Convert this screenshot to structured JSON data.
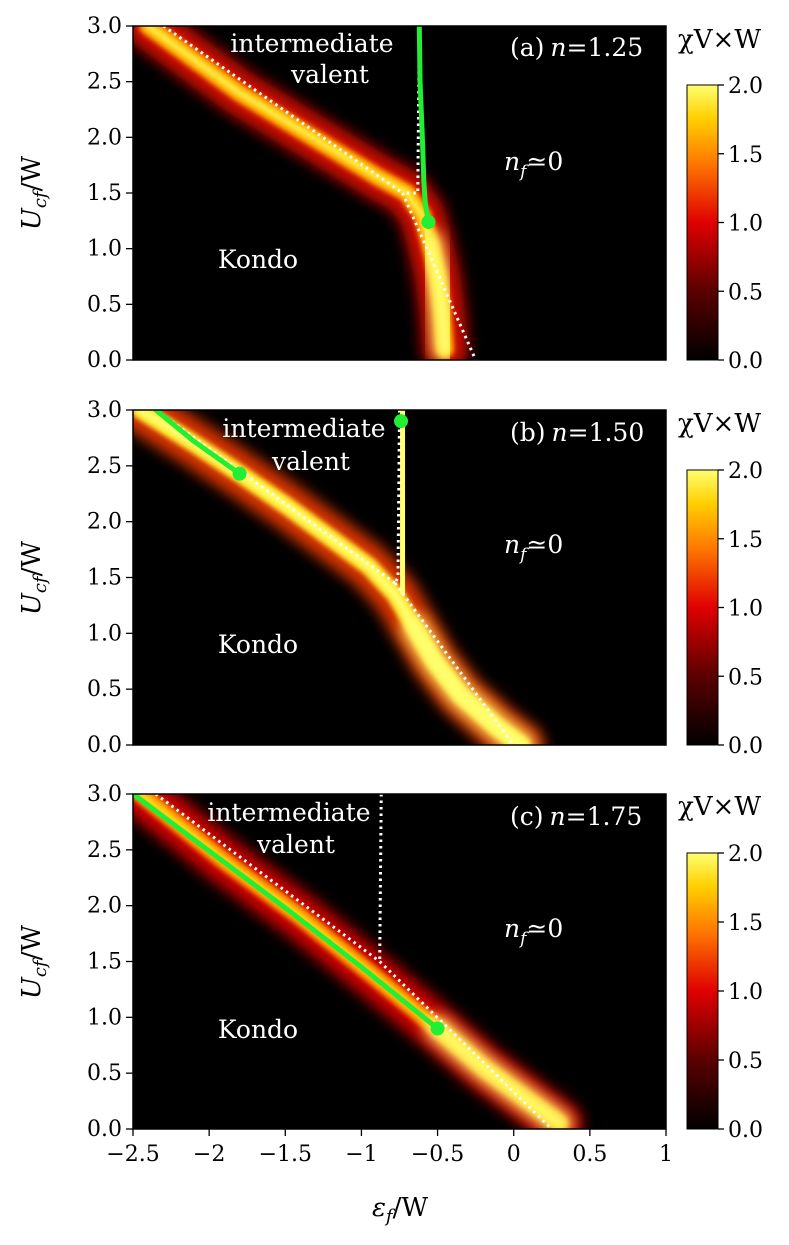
{
  "chart_data": [
    {
      "type": "heatmap",
      "panel_label": "(a)",
      "n_label": "n",
      "n_value": "=1.25",
      "xlim": [
        -2.5,
        1.0
      ],
      "ylim": [
        0.0,
        3.0
      ],
      "colorbar_label": "χV×W",
      "colorbar_range": [
        0.0,
        2.0
      ],
      "regions": {
        "kondo": "Kondo",
        "iv_line1": "intermediate",
        "iv_line2": "valent",
        "nf_var": "n",
        "nf_sub": "f",
        "nf_rest": "≃0"
      },
      "ridge_points": [
        [
          -2.4,
          3.0
        ],
        [
          -2.1,
          2.7
        ],
        [
          -1.8,
          2.4
        ],
        [
          -1.5,
          2.15
        ],
        [
          -1.2,
          1.9
        ],
        [
          -0.9,
          1.65
        ],
        [
          -0.7,
          1.5
        ],
        [
          -0.6,
          1.3
        ],
        [
          -0.55,
          1.05
        ],
        [
          -0.5,
          0.75
        ],
        [
          -0.47,
          0.45
        ],
        [
          -0.45,
          0.1
        ]
      ],
      "ridge_peak": 1.9,
      "vertical_ridge": null,
      "boundary_lines": [
        {
          "x": [
            -2.3,
            -0.73
          ],
          "y": [
            3.0,
            1.5
          ]
        },
        {
          "x": [
            -0.62,
            -0.63,
            -0.73
          ],
          "y": [
            3.0,
            1.5,
            1.5
          ]
        },
        {
          "x": [
            -0.73,
            -0.25
          ],
          "y": [
            1.5,
            0.0
          ]
        }
      ],
      "first_order_line": {
        "x": [
          -0.62,
          -0.615,
          -0.6,
          -0.59,
          -0.58,
          -0.56
        ],
        "y": [
          3.0,
          2.5,
          2.0,
          1.6,
          1.4,
          1.24
        ]
      },
      "critical_point": {
        "x": -0.56,
        "y": 1.24
      }
    },
    {
      "type": "heatmap",
      "panel_label": "(b)",
      "n_label": "n",
      "n_value": "=1.50",
      "xlim": [
        -2.5,
        1.0
      ],
      "ylim": [
        0.0,
        3.0
      ],
      "colorbar_label": "χV×W",
      "colorbar_range": [
        0.0,
        2.0
      ],
      "regions": {
        "kondo": "Kondo",
        "iv_line1": "intermediate",
        "iv_line2": "valent",
        "nf_var": "n",
        "nf_sub": "f",
        "nf_rest": "≃0"
      },
      "ridge_points": [
        [
          -2.45,
          3.0
        ],
        [
          -2.1,
          2.7
        ],
        [
          -1.8,
          2.43
        ],
        [
          -1.5,
          2.15
        ],
        [
          -1.2,
          1.85
        ],
        [
          -0.95,
          1.6
        ],
        [
          -0.78,
          1.35
        ],
        [
          -0.65,
          1.05
        ],
        [
          -0.52,
          0.75
        ],
        [
          -0.35,
          0.45
        ],
        [
          -0.1,
          0.15
        ],
        [
          0.05,
          0.0
        ]
      ],
      "ridge_peak": 2.2,
      "vertical_ridge": {
        "x": -0.73,
        "y_from": 1.35,
        "y_to": 3.0
      },
      "boundary_lines": [
        {
          "x": [
            -2.35,
            -0.78
          ],
          "y": [
            3.0,
            1.45
          ]
        },
        {
          "x": [
            -0.75,
            -0.76,
            -0.78
          ],
          "y": [
            3.0,
            1.5,
            1.45
          ]
        },
        {
          "x": [
            -0.78,
            0.0
          ],
          "y": [
            1.45,
            0.0
          ]
        }
      ],
      "first_order_line": {
        "x": [
          -2.35,
          -2.1,
          -1.8
        ],
        "y": [
          3.0,
          2.72,
          2.43
        ]
      },
      "critical_point": {
        "x": -1.8,
        "y": 2.43
      },
      "critical_point_2": {
        "x": -0.74,
        "y": 2.9
      }
    },
    {
      "type": "heatmap",
      "panel_label": "(c)",
      "n_label": "n",
      "n_value": "=1.75",
      "xlim": [
        -2.5,
        1.0
      ],
      "ylim": [
        0.0,
        3.0
      ],
      "xlabel_var": "ε",
      "xlabel_sub": "f",
      "xlabel_rest": "/W",
      "xticks": [
        "−2.5",
        "−2",
        "−1.5",
        "−1",
        "−0.5",
        "0",
        "0.5",
        "1"
      ],
      "colorbar_label": "χV×W",
      "colorbar_range": [
        0.0,
        2.0
      ],
      "regions": {
        "kondo": "Kondo",
        "iv_line1": "intermediate",
        "iv_line2": "valent",
        "nf_var": "n",
        "nf_sub": "f",
        "nf_rest": "≃0"
      },
      "ridge_points": [
        [
          -2.45,
          3.0
        ],
        [
          -1.9,
          2.4
        ],
        [
          -1.4,
          1.9
        ],
        [
          -0.9,
          1.35
        ],
        [
          -0.5,
          0.9
        ],
        [
          -0.2,
          0.55
        ],
        [
          0.1,
          0.25
        ],
        [
          0.3,
          0.05
        ]
      ],
      "ridge_peak": 1.8,
      "vertical_ridge": {
        "x": -0.86,
        "y_from": 1.5,
        "y_to": 3.0,
        "faint": true
      },
      "boundary_lines": [
        {
          "x": [
            -2.35,
            -0.88
          ],
          "y": [
            3.0,
            1.5
          ]
        },
        {
          "x": [
            -0.87,
            -0.88
          ],
          "y": [
            3.0,
            1.5
          ]
        },
        {
          "x": [
            -0.88,
            0.25
          ],
          "y": [
            1.5,
            0.0
          ]
        }
      ],
      "first_order_line": {
        "x": [
          -2.5,
          -2.0,
          -1.5,
          -1.0,
          -0.5
        ],
        "y": [
          3.0,
          2.49,
          1.98,
          1.45,
          0.9
        ]
      },
      "critical_point": {
        "x": -0.5,
        "y": 0.9
      }
    }
  ],
  "ylabel_var": "U",
  "ylabel_sub": "cf",
  "ylabel_rest": "/W",
  "yticks": [
    "0.0",
    "0.5",
    "1.0",
    "1.5",
    "2.0",
    "2.5",
    "3.0"
  ],
  "cbar_ticks": [
    "0.0",
    "0.5",
    "1.0",
    "1.5",
    "2.0"
  ],
  "colors": {
    "first_order_line": "#22ee33",
    "boundary": "#ffffff",
    "background": "#000000",
    "high": "#ffff66",
    "mid": "#ff2200"
  }
}
